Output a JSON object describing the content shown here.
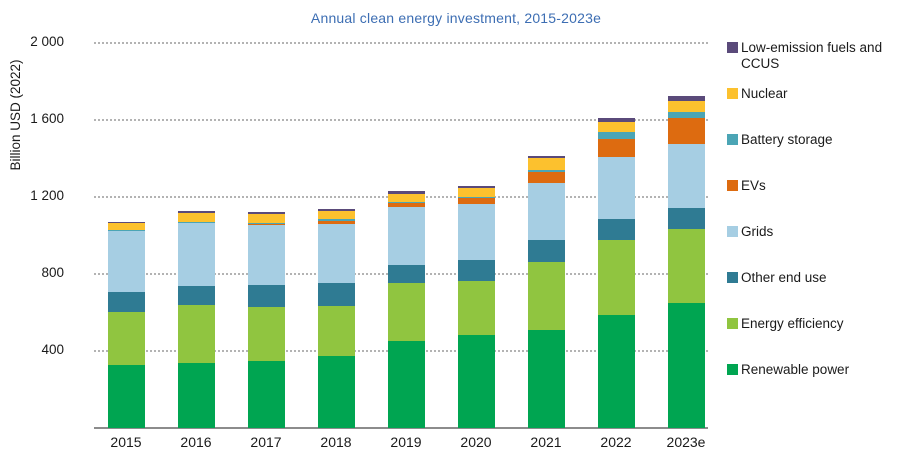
{
  "title": "Annual clean energy investment, 2015-2023e",
  "title_color": "#3d6eb3",
  "y_axis": {
    "label": "Billion USD (2022)",
    "ticks": [
      {
        "label": "2 000",
        "value": 2000
      },
      {
        "label": "1 600",
        "value": 1600
      },
      {
        "label": "1 200",
        "value": 1200
      },
      {
        "label": "800",
        "value": 800
      },
      {
        "label": "400",
        "value": 400
      }
    ]
  },
  "chart_data": {
    "type": "bar",
    "stacked": true,
    "title": "Annual clean energy investment, 2015-2023e",
    "xlabel": "",
    "ylabel": "Billion USD (2022)",
    "ylim": [
      0,
      2000
    ],
    "grid": "horizontal dotted lines every 400",
    "legend_position": "right",
    "categories": [
      "2015",
      "2016",
      "2017",
      "2018",
      "2019",
      "2020",
      "2021",
      "2022",
      "2023e"
    ],
    "series_bottom_to_top": [
      {
        "name": "Renewable power",
        "color": "#00a551",
        "values": [
          325,
          336,
          346,
          372,
          450,
          483,
          509,
          587,
          648
        ]
      },
      {
        "name": "Energy efficiency",
        "color": "#90c540",
        "values": [
          279,
          303,
          284,
          262,
          301,
          280,
          353,
          391,
          387
        ]
      },
      {
        "name": "Other end use",
        "color": "#2f7b93",
        "values": [
          104,
          100,
          112,
          117,
          97,
          111,
          113,
          109,
          109
        ]
      },
      {
        "name": "Grids",
        "color": "#a6cee3",
        "values": [
          319,
          324,
          312,
          308,
          301,
          289,
          298,
          318,
          331
        ]
      },
      {
        "name": "EVs",
        "color": "#dd6b10",
        "values": [
          2,
          6,
          8,
          18,
          22,
          33,
          55,
          95,
          133
        ]
      },
      {
        "name": "Battery storage",
        "color": "#4ba5b5",
        "values": [
          1,
          3,
          4,
          7,
          4,
          5,
          14,
          35,
          35
        ]
      },
      {
        "name": "Nuclear",
        "color": "#fcc12e",
        "values": [
          33,
          46,
          45,
          45,
          42,
          44,
          58,
          55,
          57
        ]
      },
      {
        "name": "Low-emission fuels and CCUS",
        "color": "#5a4a7a",
        "values": [
          8,
          10,
          10,
          10,
          11,
          10,
          11,
          18,
          26
        ]
      }
    ],
    "totals": [
      1071,
      1128,
      1121,
      1139,
      1228,
      1255,
      1411,
      1608,
      1726
    ]
  },
  "legend": {
    "items": [
      {
        "label": "Low-emission fuels and CCUS",
        "color": "#5a4a7a"
      },
      {
        "label": "Nuclear",
        "color": "#fcc12e"
      },
      {
        "label": "Battery storage",
        "color": "#4ba5b5"
      },
      {
        "label": "EVs",
        "color": "#dd6b10"
      },
      {
        "label": "Grids",
        "color": "#a6cee3"
      },
      {
        "label": "Other end use",
        "color": "#2f7b93"
      },
      {
        "label": "Energy efficiency",
        "color": "#90c540"
      },
      {
        "label": "Renewable power",
        "color": "#00a551"
      }
    ]
  }
}
